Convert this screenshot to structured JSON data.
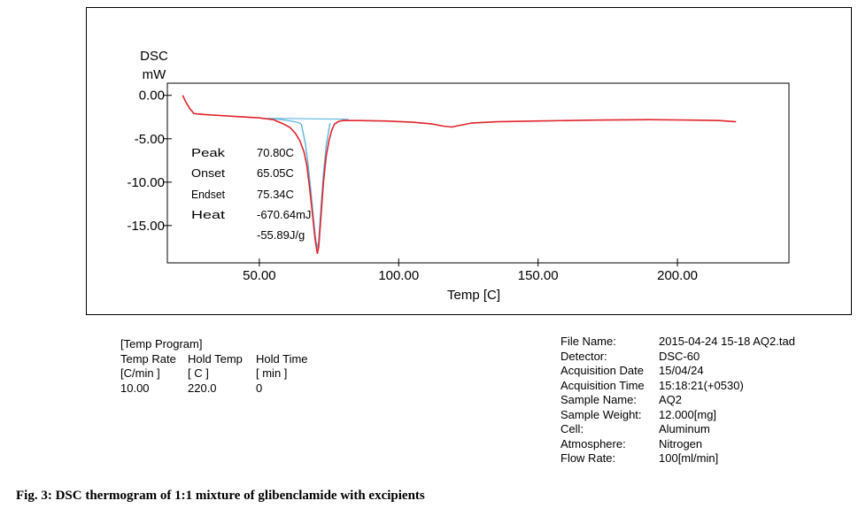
{
  "chart_data": {
    "type": "line",
    "ylabel_lines": [
      "DSC",
      "mW"
    ],
    "xlabel": "Temp  [C]",
    "xlim": [
      17,
      240
    ],
    "ylim": [
      -19.3,
      1.4
    ],
    "x_ticks": [
      50,
      100,
      150,
      200
    ],
    "x_tick_labels": [
      "50.00",
      "100.00",
      "150.00",
      "200.00"
    ],
    "y_ticks": [
      0,
      -5,
      -10,
      -15
    ],
    "y_tick_labels": [
      "0.00",
      "-5.00",
      "-10.00",
      "-15.00"
    ],
    "grid": false,
    "series": [
      {
        "color": "#e0242b",
        "x": [
          22.5,
          23.5,
          25,
          26.5,
          30,
          40,
          50,
          55,
          58,
          61,
          63,
          64.5,
          66,
          67,
          68,
          69,
          70,
          70.5,
          70.8,
          71.3,
          72,
          73,
          74,
          75,
          76,
          77,
          78.5,
          80,
          85,
          95,
          105,
          112,
          116,
          119,
          122,
          126,
          135,
          150,
          170,
          190,
          205,
          215,
          221
        ],
        "y": [
          0.0,
          -0.7,
          -1.5,
          -2.1,
          -2.2,
          -2.4,
          -2.6,
          -2.8,
          -3.2,
          -3.7,
          -4.4,
          -5.2,
          -6.5,
          -8.0,
          -10.5,
          -13.5,
          -16.5,
          -17.6,
          -18.2,
          -17.5,
          -14.5,
          -10.0,
          -7.0,
          -5.2,
          -4.0,
          -3.3,
          -3.0,
          -2.9,
          -2.9,
          -2.95,
          -3.1,
          -3.3,
          -3.55,
          -3.65,
          -3.45,
          -3.2,
          -3.05,
          -2.95,
          -2.85,
          -2.8,
          -2.85,
          -2.9,
          -3.05
        ]
      }
    ],
    "baseline": {
      "color": "#5ab4dc",
      "x": [
        53,
        82
      ],
      "y": [
        -2.65,
        -2.75
      ]
    },
    "onset_tangent": {
      "color": "#5ab4dc",
      "x": [
        53,
        58,
        62,
        64,
        65.05
      ],
      "y": [
        -2.65,
        -2.8,
        -3.0,
        -3.15,
        -3.3
      ]
    },
    "peak_fill": {
      "color": "#5ab4dc",
      "x": [
        65.05,
        66.5,
        67.5,
        68.5,
        69.5,
        70.3,
        70.8,
        71.3,
        72,
        73,
        74,
        75.34
      ],
      "y": [
        -3.3,
        -5.5,
        -8.0,
        -11.0,
        -14.5,
        -16.8,
        -17.6,
        -16.8,
        -13.5,
        -9.0,
        -5.8,
        -3.2
      ]
    },
    "annotations": {
      "labels": [
        "Peak",
        "Onset",
        "Endset",
        "Heat"
      ],
      "values": [
        "70.80C",
        "65.05C",
        "75.34C",
        "-670.64mJ",
        "-55.89J/g"
      ]
    }
  },
  "temp_program": {
    "title": "[Temp Program]",
    "headers": [
      "Temp Rate",
      "Hold Temp",
      "Hold Time"
    ],
    "units": [
      "[C/min ]",
      "[  C  ]",
      "[  min  ]"
    ],
    "rows": [
      [
        "10.00",
        "220.0",
        "0"
      ]
    ]
  },
  "file_info": [
    {
      "key": "File Name:",
      "value": "2015-04-24 15-18 AQ2.tad"
    },
    {
      "key": "Detector:",
      "value": "DSC-60"
    },
    {
      "key": "Acquisition Date",
      "value": "15/04/24"
    },
    {
      "key": "Acquisition Time",
      "value": "15:18:21(+0530)"
    },
    {
      "key": "Sample Name:",
      "value": "AQ2"
    },
    {
      "key": "Sample Weight:",
      "value": "12.000[mg]"
    },
    {
      "key": "Cell:",
      "value": "Aluminum"
    },
    {
      "key": "Atmosphere:",
      "value": "Nitrogen"
    },
    {
      "key": "Flow Rate:",
      "value": "100[ml/min]"
    }
  ],
  "caption": "Fig. 3: DSC thermogram of 1:1 mixture of glibenclamide with excipients"
}
